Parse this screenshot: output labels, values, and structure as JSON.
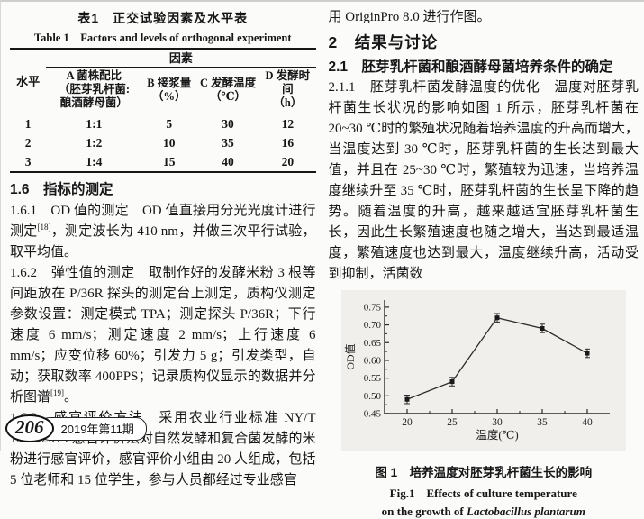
{
  "left_column": {
    "table": {
      "caption_zh": "表1　正交试验因素及水平表",
      "caption_en": "Table 1　Factors and levels of orthogonal experiment",
      "level_header": "水平",
      "factors_header": "因素",
      "columns": {
        "a": {
          "l1": "A 菌株配比",
          "l2": "（胚芽乳杆菌:",
          "l3": "酿酒酵母菌）"
        },
        "b": {
          "l1": "B 接浆量",
          "l2": "（%）"
        },
        "c": {
          "l1": "C 发酵温度",
          "l2": "（℃）"
        },
        "d": {
          "l1": "D 发酵时间",
          "l2": "（h）"
        }
      },
      "rows": [
        [
          "1",
          "1:1",
          "5",
          "30",
          "12"
        ],
        [
          "2",
          "1:2",
          "10",
          "35",
          "16"
        ],
        [
          "3",
          "1:4",
          "15",
          "40",
          "20"
        ]
      ]
    },
    "section_16_heading": "1.6　指标的测定",
    "p161_a": "1.6.1　OD 值的测定　OD 值直接用分光光度计进行测定",
    "p161_sup": "[18]",
    "p161_b": "，测定波长为 410 nm，并做三次平行试验，取平均值。",
    "p162_a": "1.6.2　弹性值的测定　取制作好的发酵米粉 3 根等间距放在 P/36R 探头的测定台上测定，质构仪测定参数设置：测定模式 TPA；测定探头 P/36R；下行速度 6 mm/s；测定速度 2 mm/s；上行速度 6 mm/s；应变位移 60%；引发力 5 g；引发类型，自动；获取数率 400PPS；记录质构仪显示的数据并分析图谱",
    "p162_sup": "[19]",
    "p162_b": "。",
    "p163": "1.6.3　感官评价方法　采用农业行业标准 NY/T 1512-2014 感官评价法对自然发酵和复合菌发酵的米粉进行感官评价，感官评价小组由 20 人组成，包括 5 位老师和 15 位学生，参与人员都经过专业感官"
  },
  "right_column": {
    "intro_line": "用 OriginPro 8.0 进行作图。",
    "h2": "2　结果与讨论",
    "h21": "2.1　胚芽乳杆菌和酿酒酵母菌培养条件的确定",
    "p211": "2.1.1　胚芽乳杆菌发酵温度的优化　温度对胚芽乳杆菌生长状况的影响如图 1 所示，胚芽乳杆菌在 20~30 ℃时的繁殖状况随着培养温度的升高而增大，当温度达到 30 ℃时，胚芽乳杆菌的生长达到最大值，并且在 25~30 ℃时，繁殖较为迅速，当培养温度继续升至 35 ℃时，胚芽乳杆菌的生长呈下降的趋势。随着温度的升高，越来越适宜胚芽乳杆菌生长，因此生长繁殖速度也随之增大，当达到最适温度，繁殖速度也达到最大，温度继续升高，活动受到抑制，活菌数",
    "figure": {
      "caption_zh": "图 1　培养温度对胚芽乳杆菌生长的影响",
      "caption_en_line1": "Fig.1　Effects of culture temperature",
      "caption_en_line2_prefix": "on the growth of ",
      "species": "Lactobacillus plantarum"
    }
  },
  "footer": {
    "page_number": "206",
    "issue": "2019年第11期"
  },
  "chart_data": {
    "type": "line",
    "title": "",
    "x": [
      20,
      25,
      30,
      35,
      40
    ],
    "series": [
      {
        "name": "OD值",
        "values": [
          0.49,
          0.54,
          0.72,
          0.69,
          0.62
        ],
        "errors": [
          0.012,
          0.012,
          0.012,
          0.012,
          0.012
        ]
      }
    ],
    "xlabel": "温度(℃)",
    "ylabel": "OD值",
    "xlim": [
      17.5,
      42.5
    ],
    "ylim": [
      0.45,
      0.77
    ],
    "xticks": [
      20,
      25,
      30,
      35,
      40
    ],
    "yticks": [
      0.45,
      0.5,
      0.55,
      0.6,
      0.65,
      0.7,
      0.75
    ],
    "grid": false,
    "legend": false,
    "marker": "square",
    "line_color": "#2b2b2b",
    "axis_color": "#2a2a2a"
  }
}
